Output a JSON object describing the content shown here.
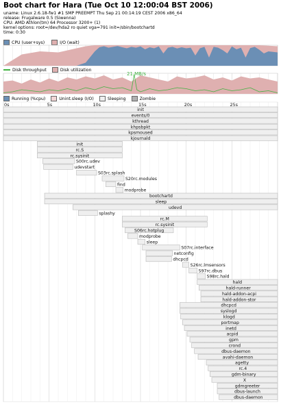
{
  "header": {
    "title": "Boot chart for Hara (Tue Oct 10 12:00:04 BST 2006)",
    "uname": "uname: Linux 2.6.18-fw1 #1 SMP PREEMPT Thu Sep 21 00:14:19 CEST 2006 x86_64",
    "release": "release: Frugalware 0.5 (Siwenna)",
    "cpu": "CPU: AMD Athlon(tm) 64 Processor 3200+ (1)",
    "kernel": "kernel options: root=/dev/hda2 ro quiet vga=791 init=/sbin/bootchartd",
    "time": "time: 0:30"
  },
  "colors": {
    "cpu": "#6b8fb5",
    "io_wait": "#dfb0b0",
    "disk_throughput": "#41b241",
    "disk_util": "#dfb0b0",
    "running": "#6b8fb5",
    "unint_sleep": "#f2d6d6",
    "sleeping": "#efefef",
    "zombie": "#b0b0b0",
    "grid": "#e0e0e0",
    "process_border": "#b8b8b8"
  },
  "legends": {
    "cpu": [
      "CPU (user+sys)",
      "I/O (wait)"
    ],
    "disk": [
      "Disk throughput",
      "Disk utilization"
    ],
    "process": [
      "Running (%cpu)",
      "Unint.sleep (I/O)",
      "Sleeping",
      "Zombie"
    ]
  },
  "chart_data": [
    {
      "type": "area",
      "name": "cpu",
      "x_range": [
        0,
        30
      ],
      "y_range": [
        0,
        100
      ],
      "series": [
        {
          "name": "CPU (user+sys)",
          "color": "#6b8fb5",
          "x": [
            0,
            2,
            4,
            6,
            8,
            9,
            10,
            10.5,
            11,
            11.5,
            12,
            12.5,
            13,
            13.5,
            14,
            14.5,
            15,
            15.5,
            16,
            16.5,
            17,
            17.5,
            18,
            18.5,
            19,
            19.5,
            20,
            20.5,
            21,
            21.5,
            22,
            22.5,
            23,
            23.5,
            24,
            24.5,
            25,
            25.5,
            26,
            26.5,
            27,
            27.5,
            28,
            28.5,
            29,
            30
          ],
          "values": [
            0,
            0,
            0,
            0,
            0,
            15,
            70,
            90,
            95,
            88,
            92,
            96,
            90,
            85,
            92,
            88,
            94,
            80,
            90,
            85,
            94,
            60,
            88,
            92,
            84,
            90,
            85,
            88,
            50,
            85,
            92,
            40,
            92,
            88,
            76,
            60,
            94,
            80,
            88,
            40,
            86,
            92,
            78,
            60,
            70,
            65
          ]
        },
        {
          "name": "I/O (wait)",
          "color": "#dfb0b0",
          "x": [
            0,
            2,
            4,
            6,
            8,
            9,
            10,
            11,
            12,
            14,
            16,
            18,
            20,
            22,
            24,
            26,
            28,
            30
          ],
          "values": [
            0,
            55,
            70,
            65,
            85,
            95,
            100,
            100,
            100,
            100,
            100,
            100,
            100,
            100,
            100,
            100,
            100,
            95
          ]
        }
      ]
    },
    {
      "type": "area",
      "name": "disk",
      "x_range": [
        0,
        30
      ],
      "y_range": [
        0,
        100
      ],
      "annotation": "21 MB/s",
      "series": [
        {
          "name": "Disk utilization",
          "color": "#dfb0b0",
          "x": [
            0,
            1,
            2,
            3,
            4,
            5,
            6,
            7,
            8,
            9,
            10,
            11,
            12,
            13,
            14,
            15,
            16,
            17,
            18,
            19,
            20,
            21,
            22,
            23,
            24,
            25,
            26,
            27,
            28,
            29,
            30
          ],
          "values": [
            60,
            65,
            50,
            70,
            55,
            75,
            60,
            80,
            70,
            85,
            75,
            90,
            70,
            80,
            60,
            90,
            80,
            70,
            60,
            85,
            75,
            80,
            90,
            70,
            80,
            65,
            85,
            75,
            80,
            70,
            60
          ]
        },
        {
          "name": "Disk throughput",
          "color": "#41b241",
          "x": [
            0,
            1,
            2,
            3,
            4,
            5,
            6,
            7,
            8,
            9,
            10,
            11,
            12,
            13,
            14,
            14.3,
            14.6,
            15,
            16,
            17,
            18,
            19,
            20,
            21,
            22,
            23,
            24,
            25,
            26,
            27,
            28,
            29,
            30
          ],
          "values": [
            5,
            10,
            20,
            15,
            10,
            20,
            15,
            25,
            15,
            30,
            20,
            35,
            25,
            30,
            15,
            95,
            20,
            10,
            25,
            15,
            20,
            30,
            25,
            15,
            20,
            10,
            25,
            15,
            20,
            30,
            10,
            15,
            5
          ]
        }
      ]
    },
    {
      "type": "gantt",
      "name": "processes",
      "x_range": [
        0,
        30
      ],
      "ticks": [
        "0s",
        "5s",
        "10s",
        "15s",
        "20s",
        "25s"
      ],
      "tick_values": [
        0,
        5,
        10,
        15,
        20,
        25
      ],
      "processes": [
        {
          "name": "init",
          "start": 0.0,
          "end": 30
        },
        {
          "name": "events/0",
          "start": 0.0,
          "end": 30
        },
        {
          "name": "kthread",
          "start": 0.0,
          "end": 30
        },
        {
          "name": "khpsbpkt",
          "start": 0.0,
          "end": 30
        },
        {
          "name": "kpsmoused",
          "start": 0.0,
          "end": 30
        },
        {
          "name": "kjournald",
          "start": 0.0,
          "end": 30
        },
        {
          "name": "init",
          "start": 3.7,
          "end": 13.0
        },
        {
          "name": "rc.S",
          "start": 3.7,
          "end": 13.0
        },
        {
          "name": "rc.sysinit",
          "start": 3.7,
          "end": 13.0
        },
        {
          "name": "S00rc.udev",
          "start": 4.3,
          "end": 7.8
        },
        {
          "name": "udevstart",
          "start": 4.4,
          "end": 7.6
        },
        {
          "name": "S03rc.splash",
          "start": 8.0,
          "end": 10.2
        },
        {
          "name": "S20rc.modules",
          "start": 10.8,
          "end": 13.2
        },
        {
          "name": "find",
          "start": 11.2,
          "end": 12.3
        },
        {
          "name": "modprobe",
          "start": 12.3,
          "end": 13.1
        },
        {
          "name": "bootchartd",
          "start": 4.5,
          "end": 30
        },
        {
          "name": "sleep",
          "start": 4.5,
          "end": 30
        },
        {
          "name": "udevd",
          "start": 7.6,
          "end": 30
        },
        {
          "name": "splashy",
          "start": 8.2,
          "end": 10.3
        },
        {
          "name": "rc.M",
          "start": 13.0,
          "end": 22.3
        },
        {
          "name": "rc.sysinit",
          "start": 13.0,
          "end": 22.3
        },
        {
          "name": "S06rc.hotplug",
          "start": 13.3,
          "end": 18.6
        },
        {
          "name": "modprobe",
          "start": 13.6,
          "end": 14.7
        },
        {
          "name": "sleep",
          "start": 14.7,
          "end": 15.5
        },
        {
          "name": "S07rc.interface",
          "start": 15.2,
          "end": 19.3
        },
        {
          "name": "netconfig",
          "start": 15.6,
          "end": 18.5
        },
        {
          "name": "dhcpcd",
          "start": 15.6,
          "end": 18.4
        },
        {
          "name": "S26rc.lmsensors",
          "start": 19.6,
          "end": 20.3
        },
        {
          "name": "S97rc.dbus",
          "start": 20.3,
          "end": 21.2
        },
        {
          "name": "S98rc.hald",
          "start": 21.2,
          "end": 22.1
        },
        {
          "name": "hald",
          "start": 21.2,
          "end": 30
        },
        {
          "name": "hald-runner",
          "start": 21.4,
          "end": 30
        },
        {
          "name": "hald-addon-acpi",
          "start": 21.6,
          "end": 30
        },
        {
          "name": "hald-addon-stor",
          "start": 21.6,
          "end": 30
        },
        {
          "name": "dhcpcd",
          "start": 19.3,
          "end": 30
        },
        {
          "name": "syslogd",
          "start": 19.3,
          "end": 30
        },
        {
          "name": "klogd",
          "start": 19.4,
          "end": 30
        },
        {
          "name": "portmap",
          "start": 19.6,
          "end": 30
        },
        {
          "name": "inetd",
          "start": 19.8,
          "end": 30
        },
        {
          "name": "acpid",
          "start": 20.1,
          "end": 30
        },
        {
          "name": "gpm",
          "start": 20.4,
          "end": 30
        },
        {
          "name": "crond",
          "start": 20.6,
          "end": 30
        },
        {
          "name": "dbus-daemon",
          "start": 20.9,
          "end": 30
        },
        {
          "name": "avahi-daemon",
          "start": 21.3,
          "end": 30
        },
        {
          "name": "agetty",
          "start": 22.2,
          "end": 30
        },
        {
          "name": "rc.4",
          "start": 22.4,
          "end": 30
        },
        {
          "name": "gdm-binary",
          "start": 22.6,
          "end": 30
        },
        {
          "name": "X",
          "start": 22.8,
          "end": 30
        },
        {
          "name": "gdmgreeter",
          "start": 23.4,
          "end": 30
        },
        {
          "name": "dbus-launch",
          "start": 23.4,
          "end": 30
        },
        {
          "name": "dbus-daemon",
          "start": 23.6,
          "end": 30
        }
      ]
    }
  ]
}
